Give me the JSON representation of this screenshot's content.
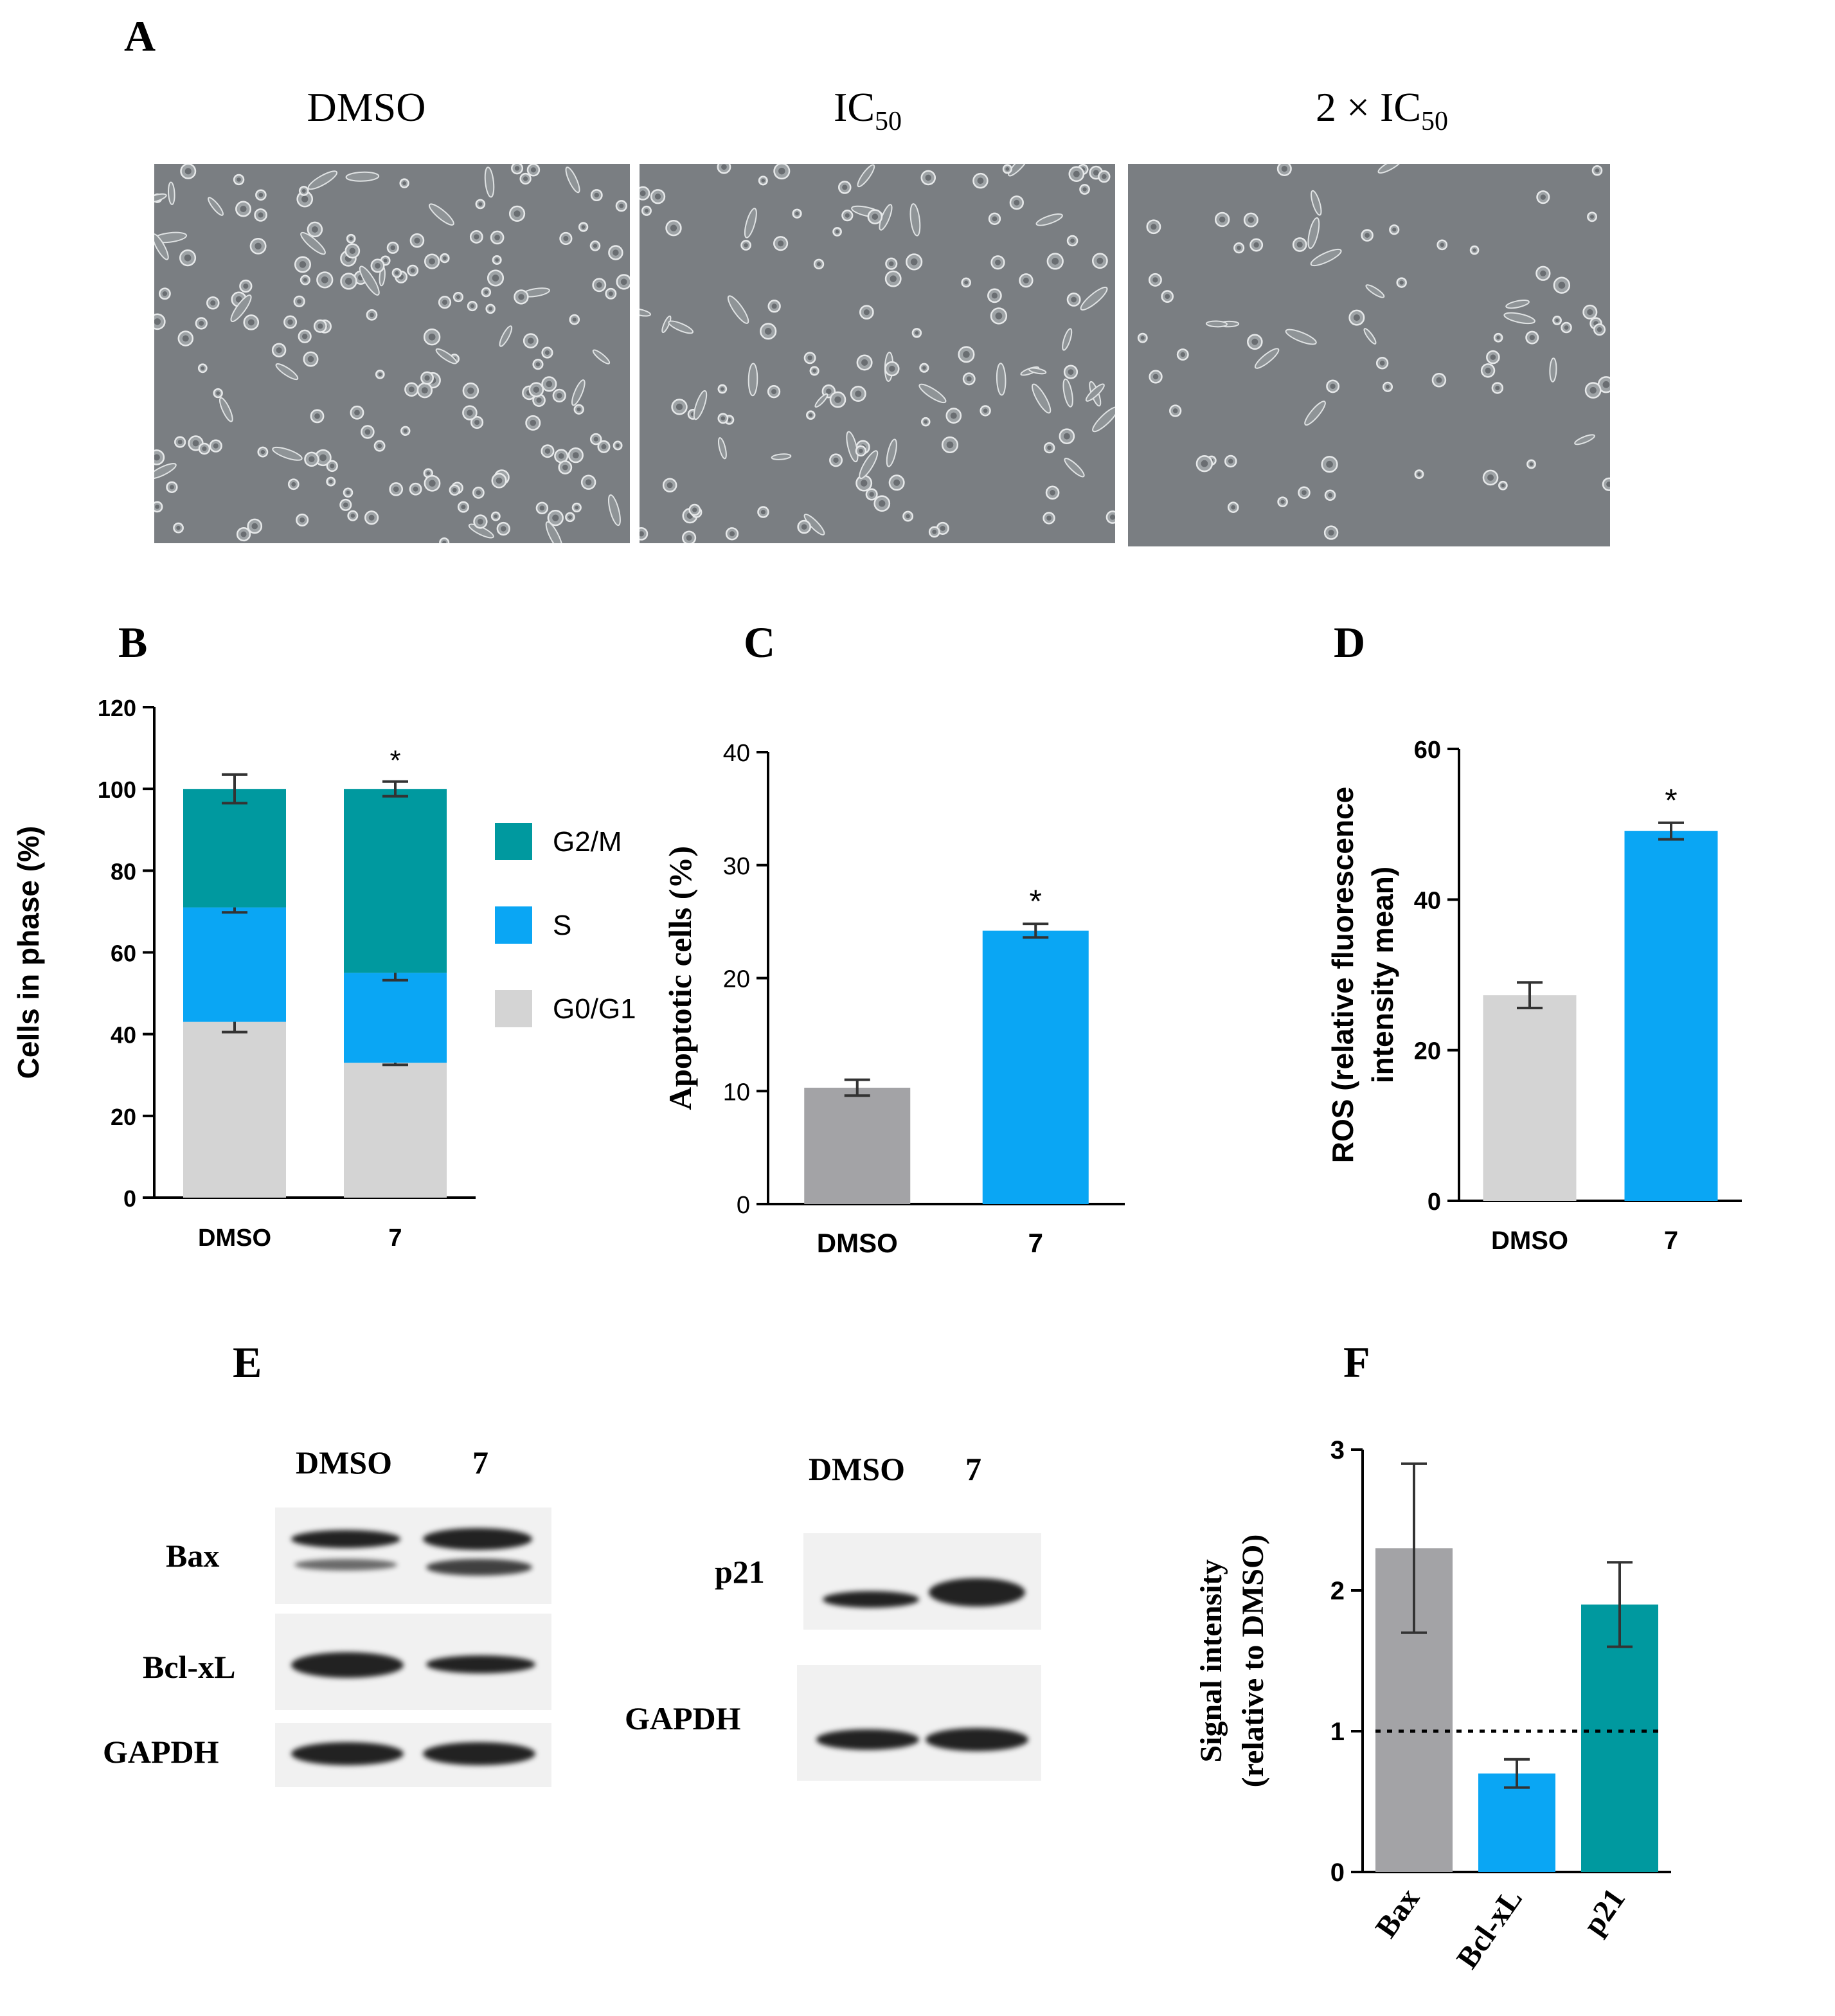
{
  "panels": {
    "A": "A",
    "B": "B",
    "C": "C",
    "D": "D",
    "E": "E",
    "F": "F"
  },
  "panel_a": {
    "conditions": [
      {
        "main": "DMSO",
        "sub": ""
      },
      {
        "main": "IC",
        "sub": "50"
      },
      {
        "main": "2 × IC",
        "sub": "50"
      }
    ]
  },
  "colors": {
    "g2m": "#00999f",
    "s": "#0aa6f4",
    "g0g1": "#d4d4d4",
    "dmso_gray": "#a3a3a6",
    "blue": "#0aa6f4",
    "teal": "#00999f",
    "d_dmso": "#d4d4d4"
  },
  "chart_data": [
    {
      "panel": "B",
      "type": "bar",
      "stacked": true,
      "categories": [
        "DMSO",
        "7"
      ],
      "ylabel": "Cells in phase (%)",
      "ylim": [
        0,
        120
      ],
      "yticks": [
        "0",
        "20",
        "40",
        "60",
        "80",
        "100",
        "120"
      ],
      "series": [
        {
          "name": "G0/G1",
          "values": [
            43,
            33
          ],
          "errors": [
            2.5,
            0.5
          ]
        },
        {
          "name": "S",
          "values": [
            28,
            22
          ],
          "errors": [
            1.2,
            1.8
          ]
        },
        {
          "name": "G2/M",
          "values": [
            29,
            45
          ],
          "errors": [
            3.5,
            1.8
          ]
        }
      ],
      "legend_order": [
        "G2/M",
        "S",
        "G0/G1"
      ],
      "annotations": [
        {
          "category": "7",
          "text": "*"
        }
      ]
    },
    {
      "panel": "C",
      "type": "bar",
      "categories": [
        "DMSO",
        "7"
      ],
      "values": [
        10.3,
        24.2
      ],
      "errors": [
        0.7,
        0.6
      ],
      "ylabel": "Apoptotic cells (%)",
      "ylim": [
        0,
        40
      ],
      "yticks": [
        "0",
        "10",
        "20",
        "30",
        "40"
      ],
      "annotations": [
        {
          "category": "7",
          "text": "*"
        }
      ]
    },
    {
      "panel": "D",
      "type": "bar",
      "categories": [
        "DMSO",
        "7"
      ],
      "values": [
        27.3,
        49.1
      ],
      "errors": [
        1.7,
        1.1
      ],
      "ylabel": [
        "ROS (relative fluorescence",
        "intensity mean)"
      ],
      "ylim": [
        0,
        60
      ],
      "yticks": [
        "0",
        "20",
        "40",
        "60"
      ],
      "annotations": [
        {
          "category": "7",
          "text": "*"
        }
      ]
    },
    {
      "panel": "F",
      "type": "bar",
      "categories": [
        "Bax",
        "Bcl-xL",
        "p21"
      ],
      "values": [
        2.3,
        0.7,
        1.9
      ],
      "errors": [
        0.6,
        0.1,
        0.3
      ],
      "ylabel": [
        "Signal intensity",
        "(relative to DMSO)"
      ],
      "ylim": [
        0,
        3
      ],
      "yticks": [
        "0",
        "1",
        "2",
        "3"
      ],
      "reference_line": 1
    }
  ],
  "panel_e": {
    "left": {
      "lanes": [
        "DMSO",
        "7"
      ],
      "proteins": [
        "Bax",
        "Bcl-xL",
        "GAPDH"
      ]
    },
    "right": {
      "lanes": [
        "DMSO",
        "7"
      ],
      "proteins": [
        "p21",
        "GAPDH"
      ]
    }
  }
}
